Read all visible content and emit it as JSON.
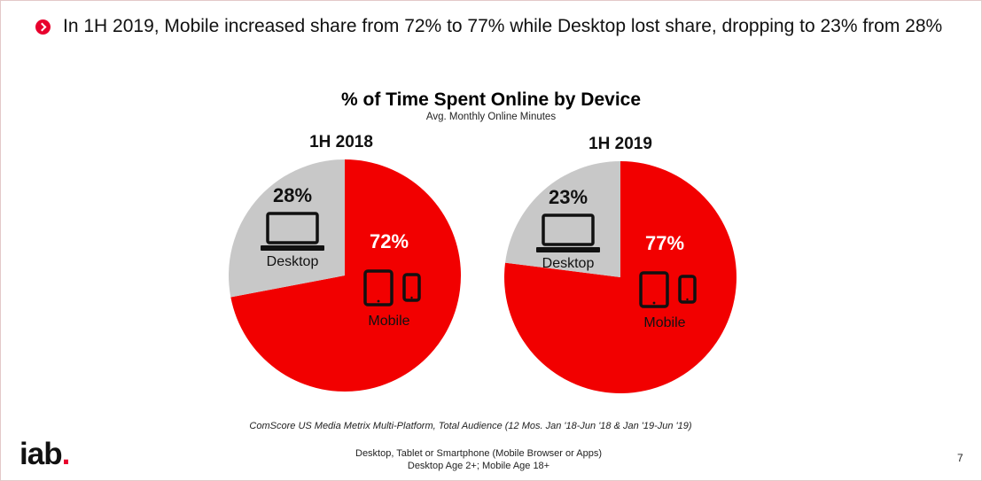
{
  "headline": "In 1H 2019, Mobile increased share from 72% to 77% while Desktop lost share, dropping to 23% from 28%",
  "chart_data": {
    "type": "pie",
    "title": "% of Time Spent Online by Device",
    "subtitle": "Avg. Monthly Online Minutes",
    "colors": {
      "Mobile": "#f20000",
      "Desktop": "#c8c8c8"
    },
    "pies": [
      {
        "period": "1H 2018",
        "slices": [
          {
            "label": "Mobile",
            "value": 72,
            "display": "72%"
          },
          {
            "label": "Desktop",
            "value": 28,
            "display": "28%"
          }
        ]
      },
      {
        "period": "1H 2019",
        "slices": [
          {
            "label": "Mobile",
            "value": 77,
            "display": "77%"
          },
          {
            "label": "Desktop",
            "value": 23,
            "display": "23%"
          }
        ]
      }
    ]
  },
  "source": "ComScore US Media Metrix Multi-Platform, Total Audience (12 Mos. Jan '18-Jun '18 & Jan '19-Jun '19)",
  "footnote": {
    "line1": "Desktop, Tablet or Smartphone (Mobile Browser or Apps)",
    "line2": "Desktop Age 2+; Mobile Age 18+"
  },
  "logo": {
    "text": "iab",
    "dot": "."
  },
  "page_number": "7"
}
